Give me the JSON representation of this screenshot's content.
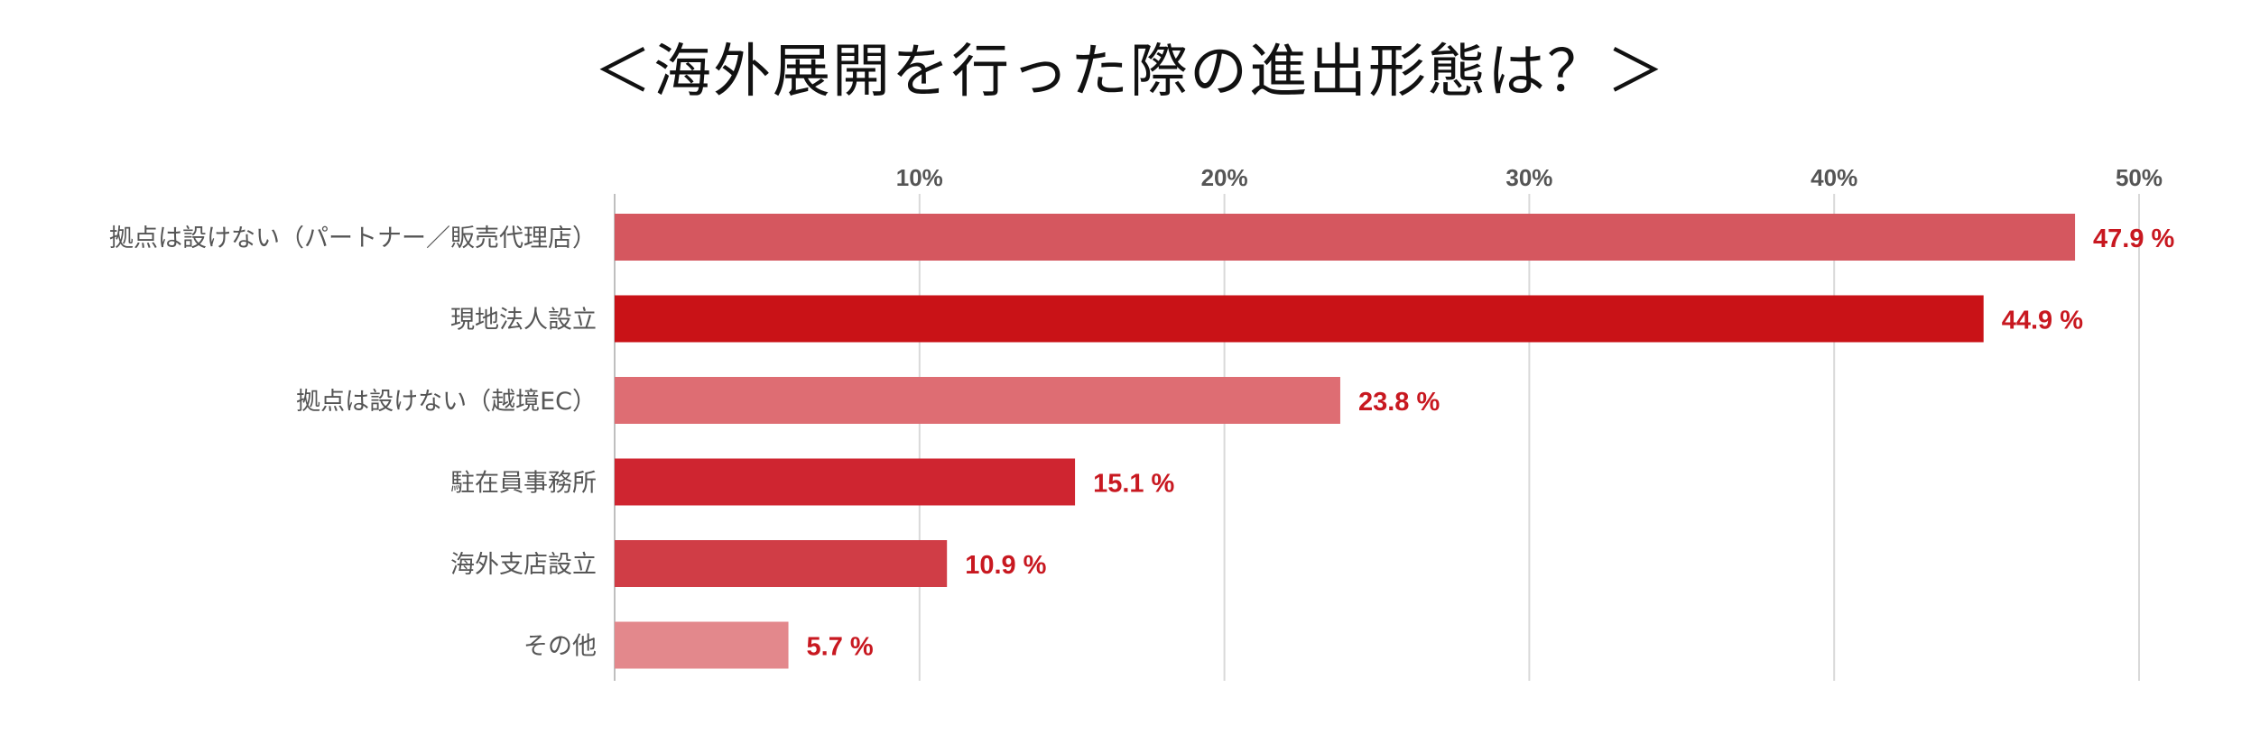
{
  "chart_data": {
    "type": "bar",
    "orientation": "horizontal",
    "title": "＜海外展開を行った際の進出形態は？＞",
    "xlabel": "",
    "ylabel": "",
    "xlim": [
      0,
      50
    ],
    "x_ticks": [
      "10%",
      "20%",
      "30%",
      "40%",
      "50%"
    ],
    "x_tick_values": [
      10,
      20,
      30,
      40,
      50
    ],
    "x_axis_position": "top",
    "grid": true,
    "legend": "none",
    "value_suffix": " %",
    "categories": [
      "拠点は設けない（パートナー／販売代理店）",
      "現地法人設立",
      "拠点は設けない（越境EC）",
      "駐在員事務所",
      "海外支店設立",
      "その他"
    ],
    "values": [
      47.9,
      44.9,
      23.8,
      15.1,
      10.9,
      5.7
    ],
    "bar_colors": [
      "#d5575f",
      "#c91217",
      "#de6d73",
      "#cf2530",
      "#d03d46",
      "#e3888c"
    ],
    "label_color": "#c81820",
    "grid_color": "#d9d9d9",
    "axis_color": "#bfbfbf"
  }
}
